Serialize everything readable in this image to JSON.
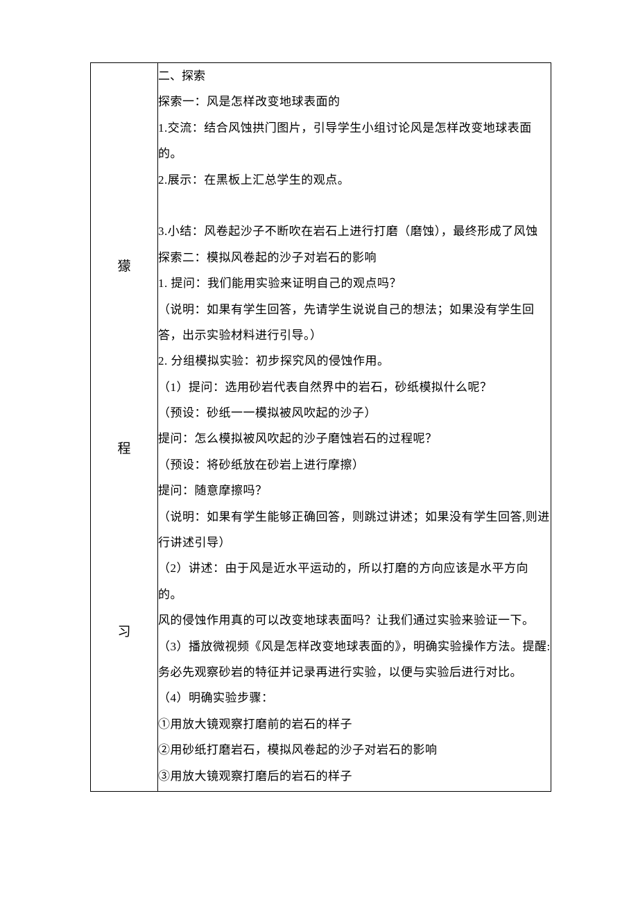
{
  "leftLabel": {
    "char1": "獴",
    "char2": "程",
    "char3": "习"
  },
  "content": {
    "heading": "二、探索",
    "lines": [
      "探索一：风是怎样改变地球表面的",
      "1.交流：结合风蚀拱门图片，引导学生小组讨论风是怎样改变地球表面",
      "的。",
      "2.展示：在黑板上汇总学生的观点。",
      "",
      "3.小结：风卷起沙子不断吹在岩石上进行打磨（磨蚀），最终形成了风蚀",
      "探索二：模拟风卷起的沙子对岩石的影响",
      "1. 提问：我们能用实验来证明自己的观点吗？",
      "（说明：如果有学生回答，先请学生说说自己的想法；如果没有学生回",
      "答，出示实验材料进行引导。）",
      "2. 分组模拟实验：初步探究风的侵蚀作用。",
      "（1）提问：选用砂岩代表自然界中的岩石，砂纸模拟什么呢？",
      "（预设：砂纸一一模拟被风吹起的沙子）",
      "提问：怎么模拟被风吹起的沙子磨蚀岩石的过程呢？",
      "（预设：将砂纸放在砂岩上进行摩擦）",
      "提问：随意摩擦吗？",
      "（说明：如果有学生能够正确回答，则跳过讲述；如果没有学生回答,则进",
      "行讲述引导）",
      "（2）讲述：由于风是近水平运动的，所以打磨的方向应该是水平方向的。",
      "风的侵蚀作用真的可以改变地球表面吗？让我们通过实验来验证一下。",
      "（3）播放微视频《风是怎样改变地球表面的》，明确实验操作方法。提醒:",
      "务必先观察砂岩的特征并记录再进行实验，以便与实验后进行对比。",
      "（4）明确实验步骤：",
      "①用放大镜观察打磨前的岩石的样子",
      "②用砂纸打磨岩石，模拟风卷起的沙子对岩石的影响",
      "③用放大镜观察打磨后的岩石的样子"
    ]
  }
}
